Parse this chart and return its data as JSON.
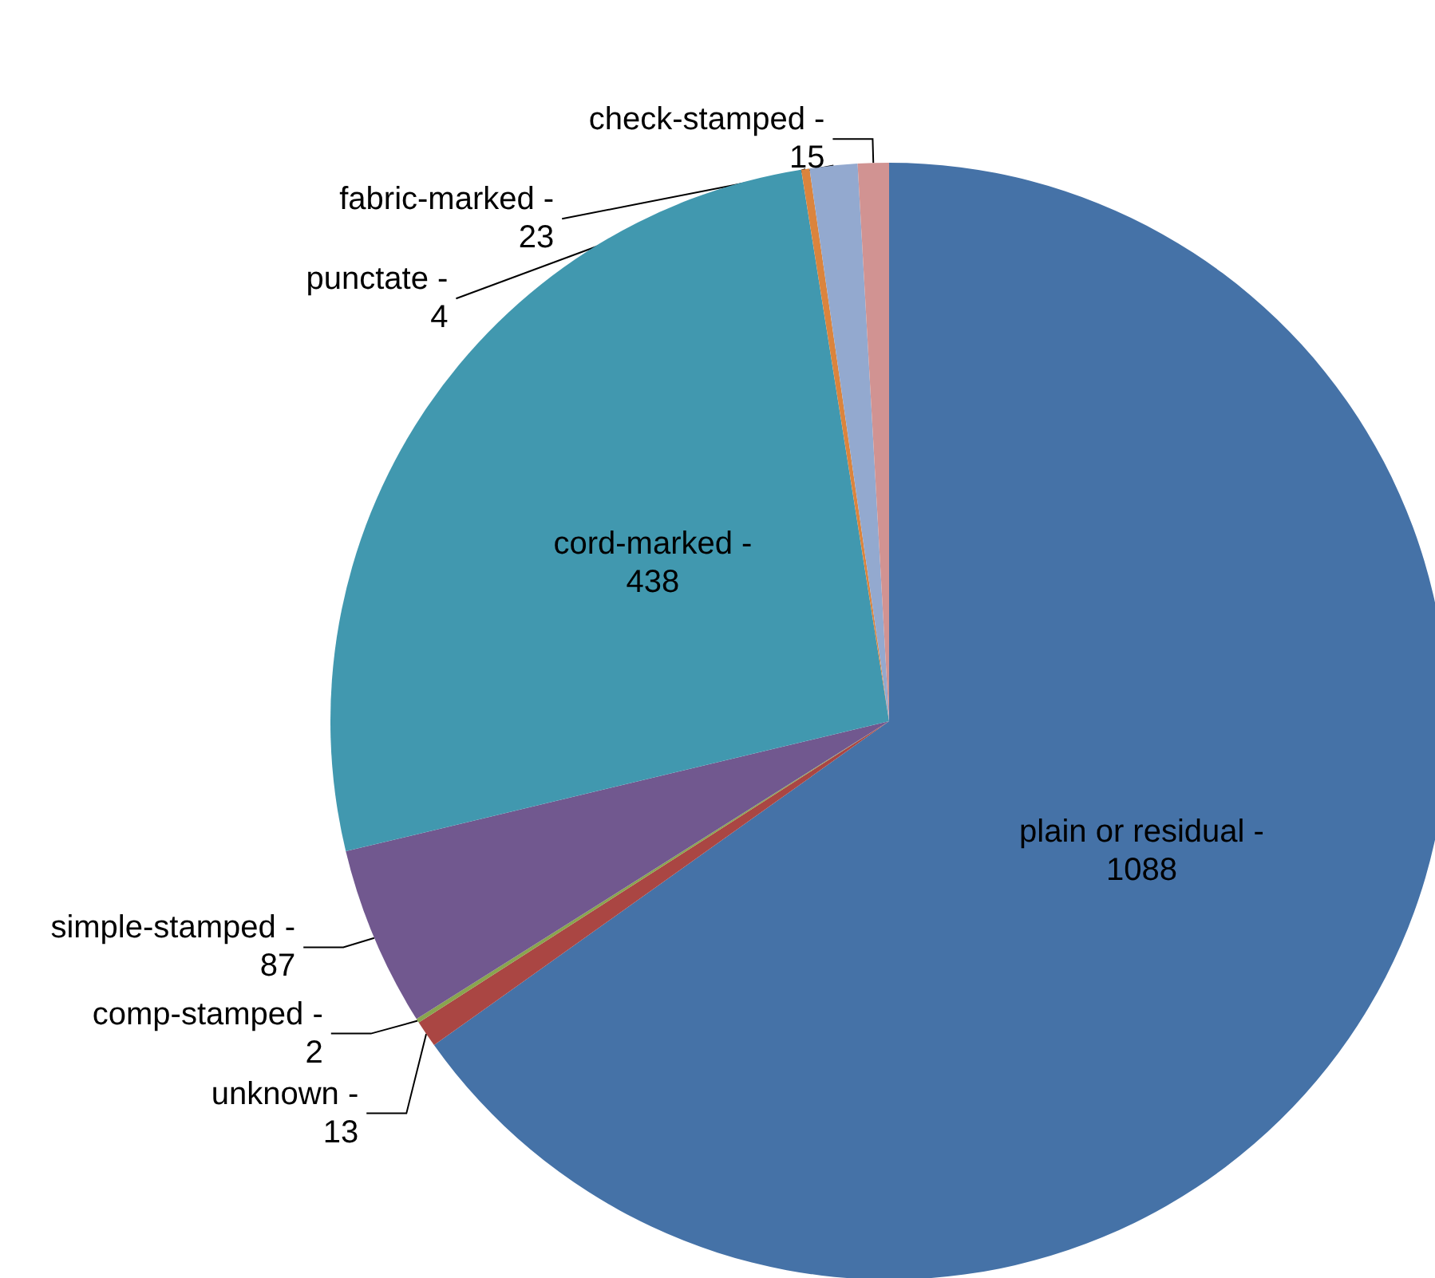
{
  "chart_data": {
    "type": "pie",
    "categories": [
      "plain or residual -",
      "unknown -",
      "comp-stamped -",
      "simple-stamped -",
      "cord-marked -",
      "punctate -",
      "fabric-marked -",
      "check-stamped -"
    ],
    "values": [
      1088,
      13,
      2,
      87,
      438,
      4,
      23,
      15
    ],
    "colors": [
      "#4572a7",
      "#aa4643",
      "#89a54e",
      "#71588f",
      "#4198af",
      "#db843d",
      "#93a9cf",
      "#d19392"
    ],
    "data_labels": true,
    "legend": false
  }
}
